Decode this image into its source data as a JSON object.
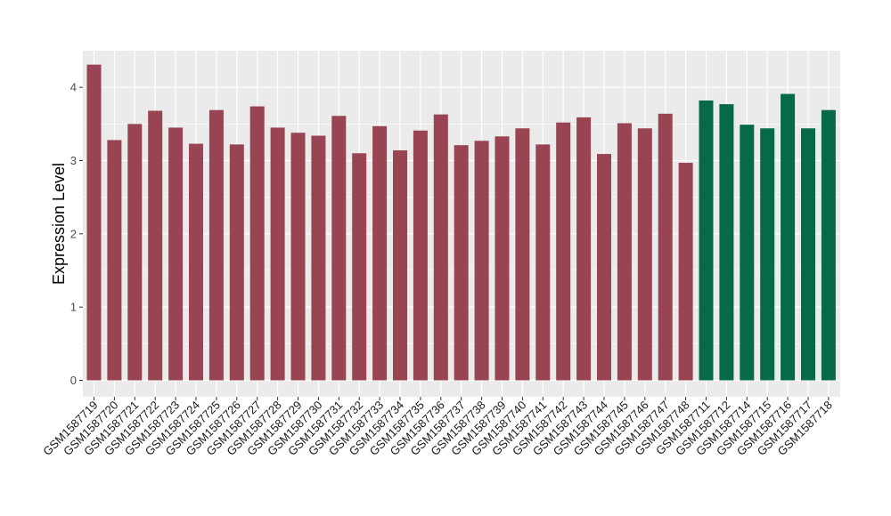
{
  "chart_data": {
    "type": "bar",
    "title": "",
    "xlabel": "",
    "ylabel": "Expression Level",
    "ylim": [
      0,
      4.5
    ],
    "yticks": [
      0,
      1,
      2,
      3,
      4
    ],
    "grid": true,
    "categories": [
      "GSM1587719",
      "GSM1587720",
      "GSM1587721",
      "GSM1587722",
      "GSM1587723",
      "GSM1587724",
      "GSM1587725",
      "GSM1587726",
      "GSM1587727",
      "GSM1587728",
      "GSM1587729",
      "GSM1587730",
      "GSM1587731",
      "GSM1587732",
      "GSM1587733",
      "GSM1587734",
      "GSM1587735",
      "GSM1587736",
      "GSM1587737",
      "GSM1587738",
      "GSM1587739",
      "GSM1587740",
      "GSM1587741",
      "GSM1587742",
      "GSM1587743",
      "GSM1587744",
      "GSM1587745",
      "GSM1587746",
      "GSM1587747",
      "GSM1587748",
      "GSM1587711",
      "GSM1587712",
      "GSM1587714",
      "GSM1587715",
      "GSM1587716",
      "GSM1587717",
      "GSM1587718"
    ],
    "values": [
      4.31,
      3.28,
      3.5,
      3.68,
      3.45,
      3.23,
      3.69,
      3.22,
      3.74,
      3.45,
      3.38,
      3.34,
      3.61,
      3.1,
      3.47,
      3.14,
      3.41,
      3.63,
      3.21,
      3.27,
      3.33,
      3.44,
      3.22,
      3.52,
      3.59,
      3.09,
      3.51,
      3.44,
      3.64,
      2.97,
      3.82,
      3.77,
      3.49,
      3.44,
      3.91,
      3.44,
      3.69
    ],
    "groups": [
      0,
      0,
      0,
      0,
      0,
      0,
      0,
      0,
      0,
      0,
      0,
      0,
      0,
      0,
      0,
      0,
      0,
      0,
      0,
      0,
      0,
      0,
      0,
      0,
      0,
      0,
      0,
      0,
      0,
      0,
      1,
      1,
      1,
      1,
      1,
      1,
      1
    ],
    "colors": [
      "#984452",
      "#05694a"
    ],
    "panel_background": "#ebebeb",
    "grid_color": "#ffffff"
  }
}
